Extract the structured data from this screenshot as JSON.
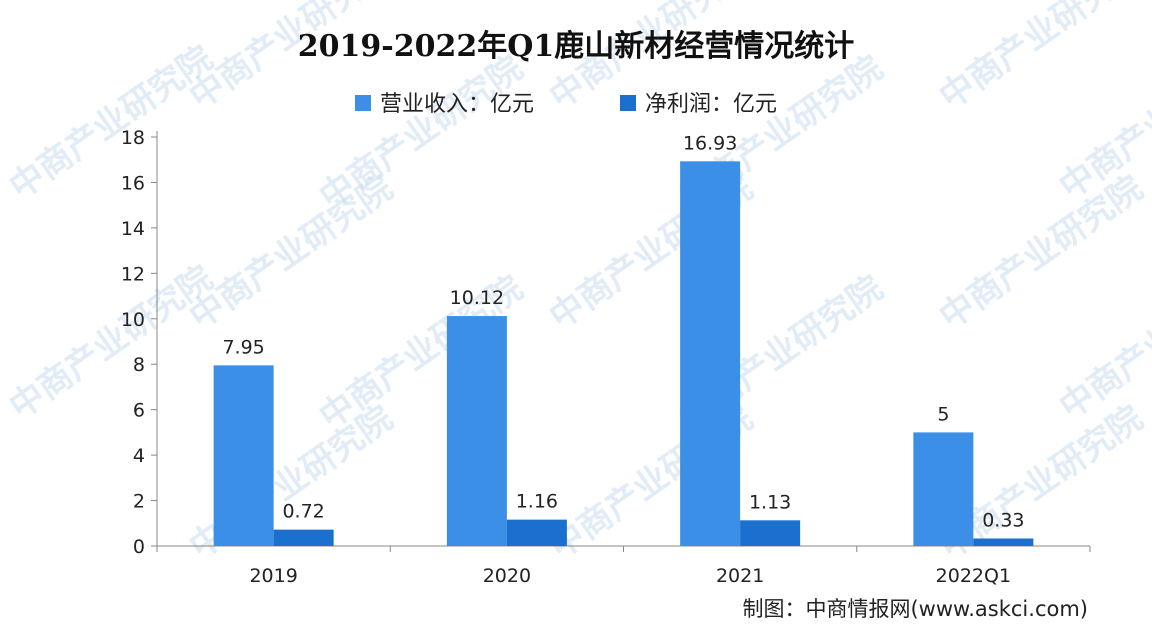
{
  "chart_data": {
    "type": "bar",
    "title": "2019-2022年Q1鹿山新材经营情况统计",
    "categories": [
      "2019",
      "2020",
      "2021",
      "2022Q1"
    ],
    "series": [
      {
        "name": "营业收入：亿元",
        "values": [
          7.95,
          10.12,
          16.93,
          5
        ],
        "labels": [
          "7.95",
          "10.12",
          "16.93",
          "5"
        ],
        "color": "#3b8fe6"
      },
      {
        "name": "净利润：亿元",
        "values": [
          0.72,
          1.16,
          1.13,
          0.33
        ],
        "labels": [
          "0.72",
          "1.16",
          "1.13",
          "0.33"
        ],
        "color": "#1a6fcf"
      }
    ],
    "ylim": [
      0,
      18
    ],
    "yticks": [
      "0",
      "2",
      "4",
      "6",
      "8",
      "10",
      "12",
      "14",
      "16",
      "18"
    ],
    "grid": false,
    "legend": "top-center"
  },
  "source": "制图：中商情报网(www.askci.com)",
  "watermark": "中商产业研究院"
}
